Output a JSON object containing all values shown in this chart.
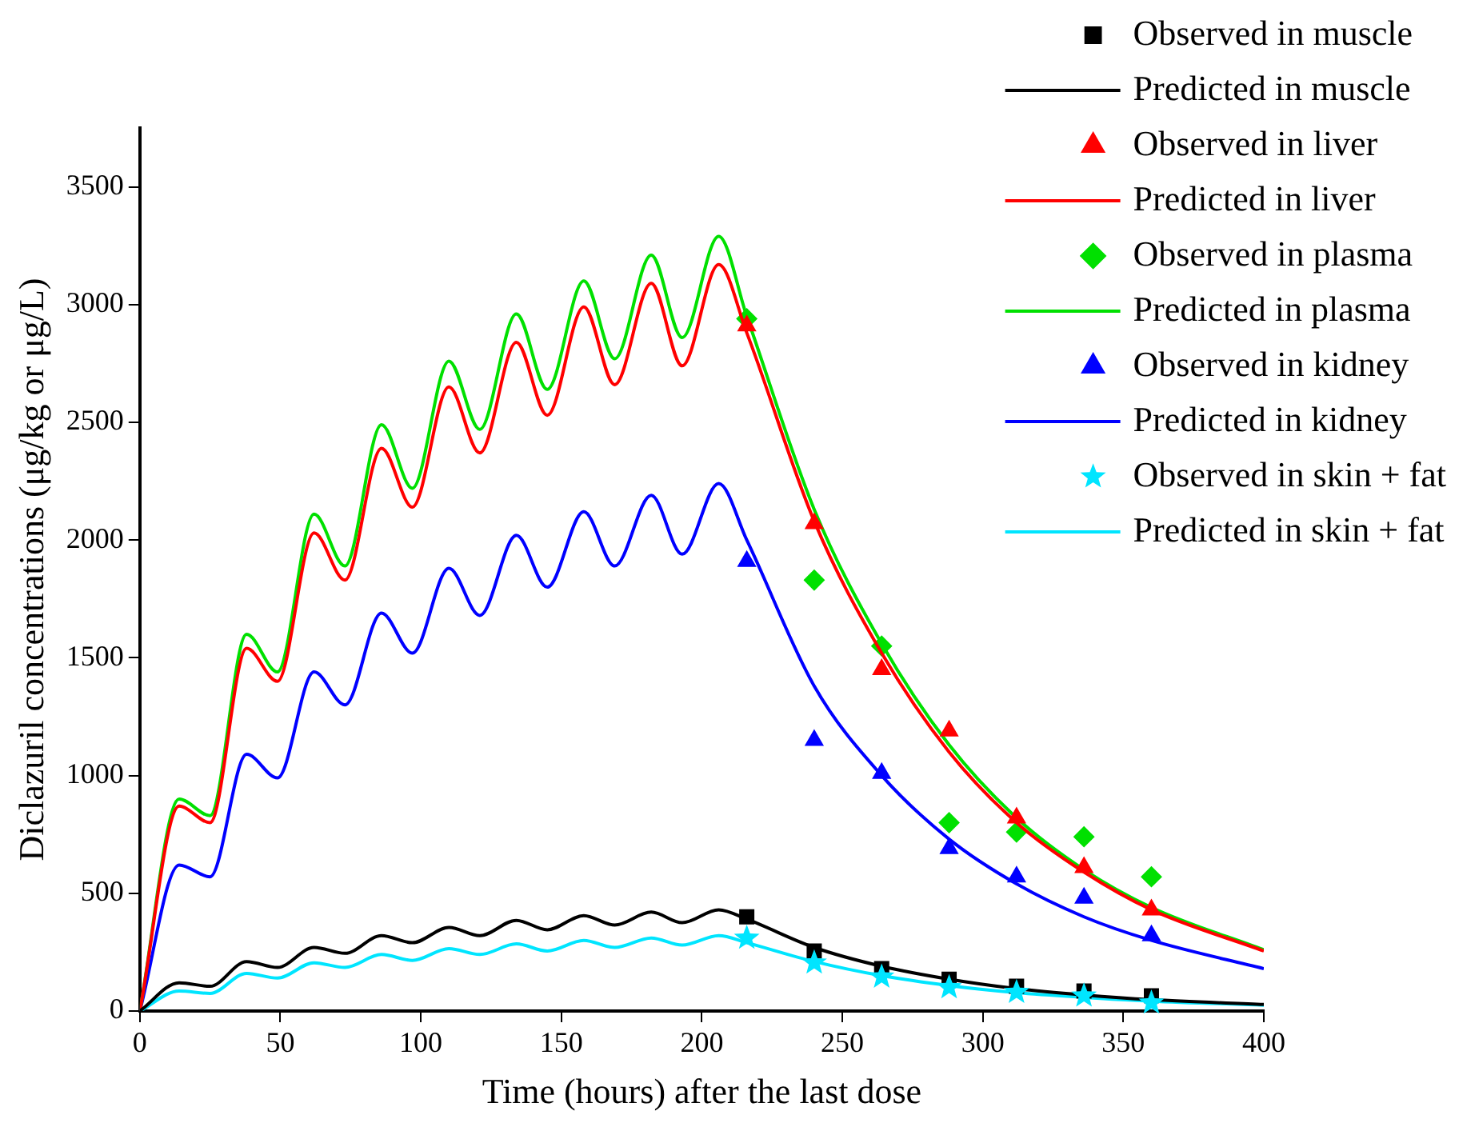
{
  "chart_data": {
    "type": "line",
    "xlabel": "Time (hours) after the last dose",
    "ylabel": "Diclazuril concentrations (μg/kg or μg/L)",
    "xlim": [
      0,
      400
    ],
    "xticks": [
      0,
      50,
      100,
      150,
      200,
      250,
      300,
      350,
      400
    ],
    "ylim": [
      0,
      3750
    ],
    "yticks": [
      0,
      500,
      1000,
      1500,
      2000,
      2500,
      3000,
      3500
    ],
    "grid": false,
    "legend": "top right",
    "series": [
      {
        "name": "Observed in muscle",
        "type": "scatter",
        "marker": "square",
        "color": "#000000",
        "x": [
          216,
          240,
          264,
          288,
          312,
          336,
          360
        ],
        "values": [
          400,
          255,
          180,
          135,
          105,
          85,
          65
        ]
      },
      {
        "name": "Predicted in muscle",
        "marker": "none",
        "color": "#000000",
        "x": [
          0,
          14,
          25,
          38,
          49,
          62,
          73,
          86,
          97,
          110,
          121,
          134,
          145,
          158,
          169,
          182,
          193,
          206,
          216,
          240,
          264,
          288,
          312,
          336,
          360,
          400
        ],
        "values": [
          0,
          120,
          105,
          210,
          185,
          270,
          245,
          320,
          290,
          355,
          320,
          385,
          345,
          405,
          365,
          420,
          375,
          430,
          390,
          270,
          190,
          135,
          95,
          68,
          48,
          28
        ]
      },
      {
        "name": "Observed in liver",
        "type": "scatter",
        "marker": "triangle",
        "color": "#ff0000",
        "x": [
          216,
          240,
          264,
          288,
          312,
          336,
          360
        ],
        "values": [
          2910,
          2070,
          1450,
          1190,
          820,
          610,
          430
        ]
      },
      {
        "name": "Predicted in liver",
        "marker": "none",
        "color": "#ff0000",
        "x": [
          0,
          14,
          25,
          38,
          49,
          62,
          73,
          86,
          97,
          110,
          121,
          134,
          145,
          158,
          169,
          182,
          193,
          206,
          216,
          240,
          264,
          288,
          312,
          336,
          360,
          400
        ],
        "values": [
          0,
          870,
          800,
          1540,
          1400,
          2030,
          1830,
          2390,
          2140,
          2650,
          2370,
          2840,
          2530,
          2990,
          2660,
          3090,
          2740,
          3170,
          2880,
          2080,
          1520,
          1100,
          800,
          590,
          430,
          255
        ]
      },
      {
        "name": "Observed in plasma",
        "type": "scatter",
        "marker": "diamond",
        "color": "#00e000",
        "x": [
          216,
          240,
          264,
          288,
          312,
          336,
          360
        ],
        "values": [
          2940,
          1830,
          1550,
          800,
          760,
          740,
          570
        ]
      },
      {
        "name": "Predicted in plasma",
        "marker": "none",
        "color": "#00e000",
        "x": [
          0,
          14,
          25,
          38,
          49,
          62,
          73,
          86,
          97,
          110,
          121,
          134,
          145,
          158,
          169,
          182,
          193,
          206,
          216,
          240,
          264,
          288,
          312,
          336,
          360,
          400
        ],
        "values": [
          0,
          900,
          830,
          1600,
          1440,
          2110,
          1890,
          2490,
          2220,
          2760,
          2470,
          2960,
          2640,
          3100,
          2770,
          3210,
          2860,
          3290,
          2950,
          2130,
          1560,
          1130,
          820,
          600,
          440,
          260
        ]
      },
      {
        "name": "Observed in kidney",
        "type": "scatter",
        "marker": "triangle",
        "color": "#0000ff",
        "x": [
          216,
          240,
          264,
          288,
          312,
          336,
          360
        ],
        "values": [
          1910,
          1150,
          1010,
          690,
          570,
          480,
          320
        ]
      },
      {
        "name": "Predicted in kidney",
        "marker": "none",
        "color": "#0000ff",
        "x": [
          0,
          14,
          25,
          38,
          49,
          62,
          73,
          86,
          97,
          110,
          121,
          134,
          145,
          158,
          169,
          182,
          193,
          206,
          216,
          240,
          264,
          288,
          312,
          336,
          360,
          400
        ],
        "values": [
          0,
          620,
          570,
          1090,
          990,
          1440,
          1300,
          1690,
          1520,
          1880,
          1680,
          2020,
          1800,
          2120,
          1890,
          2190,
          1940,
          2240,
          2000,
          1380,
          1000,
          730,
          540,
          400,
          300,
          180
        ]
      },
      {
        "name": "Observed in skin + fat",
        "type": "scatter",
        "marker": "star",
        "color": "#00e5ff",
        "x": [
          216,
          240,
          264,
          288,
          312,
          336,
          360
        ],
        "values": [
          310,
          205,
          145,
          100,
          80,
          65,
          35
        ]
      },
      {
        "name": "Predicted in skin + fat",
        "marker": "none",
        "color": "#00e5ff",
        "x": [
          0,
          14,
          25,
          38,
          49,
          62,
          73,
          86,
          97,
          110,
          121,
          134,
          145,
          158,
          169,
          182,
          193,
          206,
          216,
          240,
          264,
          288,
          312,
          336,
          360,
          400
        ],
        "values": [
          0,
          85,
          75,
          160,
          140,
          205,
          185,
          240,
          215,
          265,
          240,
          285,
          255,
          300,
          270,
          310,
          280,
          320,
          290,
          210,
          150,
          108,
          78,
          58,
          42,
          25
        ]
      }
    ]
  }
}
